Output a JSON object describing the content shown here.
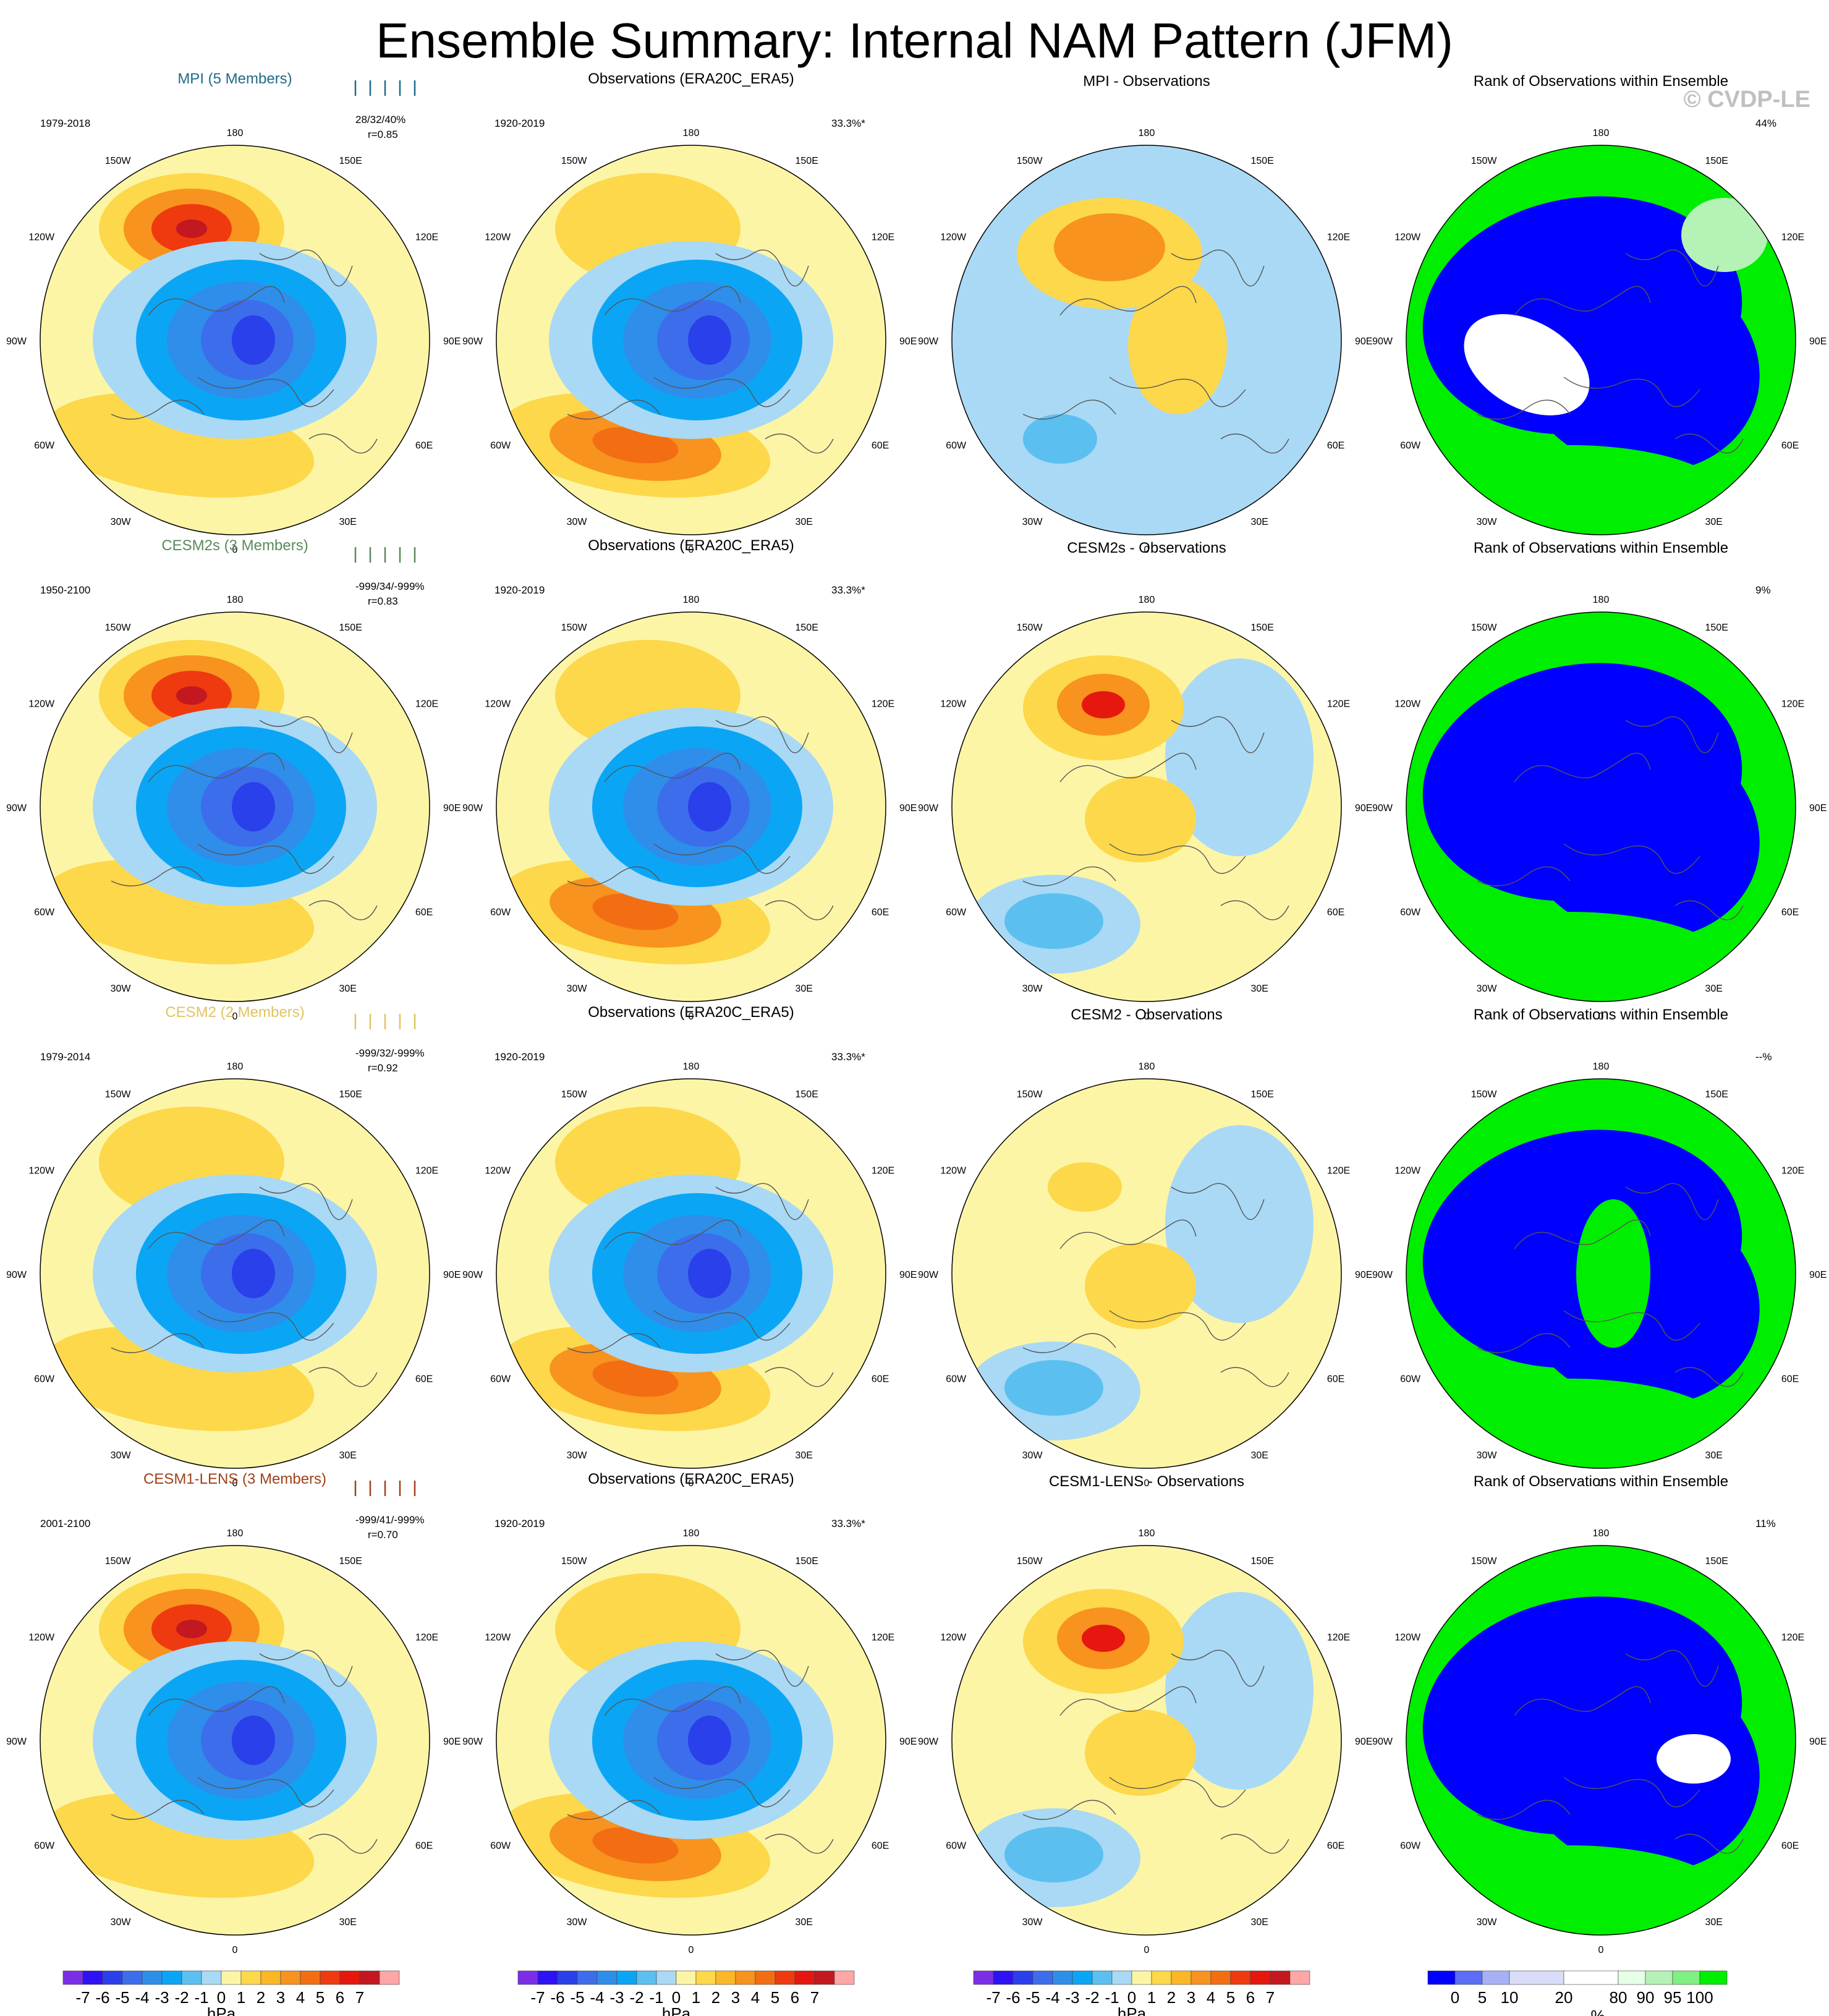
{
  "title": "Ensemble Summary: Internal NAM Pattern (JFM)",
  "watermark": "© CVDP-LE",
  "colors": {
    "neg": [
      "#7b2ee6",
      "#2e12f4",
      "#2a40ea",
      "#3c6eec",
      "#2e8eea",
      "#0aa6f5",
      "#5bc0f0",
      "#a9d9f5"
    ],
    "pos": [
      "#fdf5a6",
      "#fcd84a",
      "#fbb726",
      "#f7931e",
      "#f36e12",
      "#ef3a10",
      "#e6170f",
      "#c3181f",
      "#ffa6a6"
    ],
    "rank": [
      "#0000ff",
      "#5b6ef5",
      "#a6b1f5",
      "#d9ddf9",
      "#ffffff",
      "#e6ffe6",
      "#b5f2b5",
      "#80f080",
      "#00ee00"
    ],
    "model_titles": [
      "#1f6b8a",
      "#5a8a5a",
      "#e0c463",
      "#a0421a"
    ]
  },
  "rows": [
    {
      "model": "MPI (5 Members)",
      "model_years": "1979-2018",
      "stats1": "28/32/40%",
      "stats2": "r=0.85",
      "obs_title": "Observations (ERA20C_ERA5)",
      "obs_years": "1920-2019",
      "obs_pct": "33.3%*",
      "diff_title": "MPI - Observations",
      "rank_title": "Rank of Observations within Ensemble",
      "rank_pct": "44%"
    },
    {
      "model": "CESM2s (3 Members)",
      "model_years": "1950-2100",
      "stats1": "-999/34/-999%",
      "stats2": "r=0.83",
      "obs_title": "Observations (ERA20C_ERA5)",
      "obs_years": "1920-2019",
      "obs_pct": "33.3%*",
      "diff_title": "CESM2s - Observations",
      "rank_title": "Rank of Observations within Ensemble",
      "rank_pct": "9%"
    },
    {
      "model": "CESM2 (2 Members)",
      "model_years": "1979-2014",
      "stats1": "-999/32/-999%",
      "stats2": "r=0.92",
      "obs_title": "Observations (ERA20C_ERA5)",
      "obs_years": "1920-2019",
      "obs_pct": "33.3%*",
      "diff_title": "CESM2 - Observations",
      "rank_title": "Rank of Observations within Ensemble",
      "rank_pct": "--%"
    },
    {
      "model": "CESM1-LENS (3 Members)",
      "model_years": "2001-2100",
      "stats1": "-999/41/-999%",
      "stats2": "r=0.70",
      "obs_title": "Observations (ERA20C_ERA5)",
      "obs_years": "1920-2019",
      "obs_pct": "33.3%*",
      "diff_title": "CESM1-LENS - Observations",
      "rank_title": "Rank of Observations within Ensemble",
      "rank_pct": "11%"
    }
  ],
  "lon_labels": [
    "180",
    "150E",
    "120E",
    "90E",
    "60E",
    "30E",
    "0",
    "30W",
    "60W",
    "90W",
    "120W",
    "150W"
  ],
  "hpa_colorbar": {
    "labels": [
      "-7",
      "-6",
      "-5",
      "-4",
      "-3",
      "-2",
      "-1",
      "0",
      "1",
      "2",
      "3",
      "4",
      "5",
      "6",
      "7"
    ],
    "unit": "hPa"
  },
  "rank_colorbar": {
    "labels": [
      "0",
      "5",
      "10",
      "20",
      "80",
      "90",
      "95",
      "100"
    ],
    "unit": "%"
  }
}
